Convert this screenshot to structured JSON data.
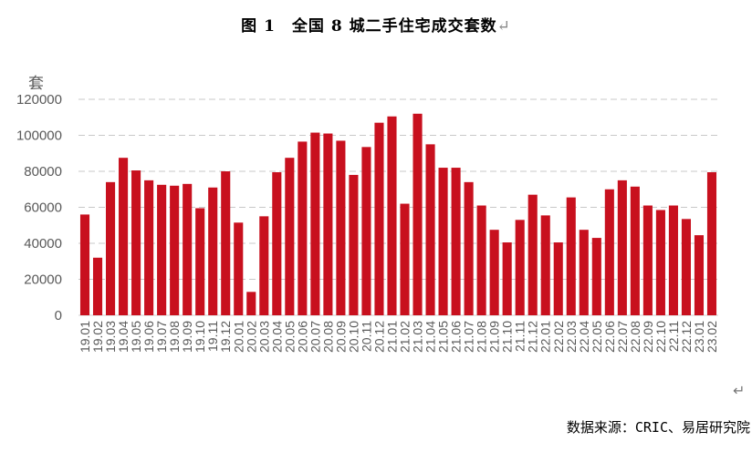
{
  "title": "图 1　全国 8 城二手住宅成交套数",
  "return_mark": "↵",
  "source": "数据来源：CRIC、易居研究院",
  "chart_data": {
    "type": "bar",
    "title": "图 1　全国 8 城二手住宅成交套数",
    "unit_label": "套",
    "xlabel": "",
    "ylabel": "套",
    "ylim": [
      0,
      120000
    ],
    "yticks": [
      "0",
      "20000",
      "40000",
      "60000",
      "80000",
      "100000",
      "120000"
    ],
    "grid": true,
    "legend": "none",
    "bar_color": "#C8101E",
    "categories": [
      "19.01",
      "19.02",
      "19.03",
      "19.04",
      "19.05",
      "19.06",
      "19.07",
      "19.08",
      "19.09",
      "19.10",
      "19.11",
      "19.12",
      "20.01",
      "20.02",
      "20.03",
      "20.04",
      "20.05",
      "20.06",
      "20.07",
      "20.08",
      "20.09",
      "20.10",
      "20.11",
      "20.12",
      "21.01",
      "21.02",
      "21.03",
      "21.04",
      "21.05",
      "21.06",
      "21.07",
      "21.08",
      "21.09",
      "21.10",
      "21.11",
      "21.12",
      "22.01",
      "22.02",
      "22.03",
      "22.04",
      "22.05",
      "22.06",
      "22.07",
      "22.08",
      "22.09",
      "22.10",
      "22.11",
      "22.12",
      "23.01",
      "23.02"
    ],
    "values": [
      56000,
      32000,
      74000,
      87500,
      80500,
      75000,
      72500,
      72000,
      73000,
      59500,
      71000,
      80000,
      51500,
      13000,
      55000,
      79500,
      87500,
      96500,
      101500,
      101000,
      97000,
      78000,
      93500,
      107000,
      110500,
      62000,
      112000,
      95000,
      82000,
      82000,
      74000,
      61000,
      47500,
      40500,
      53000,
      67000,
      55500,
      40500,
      65500,
      47500,
      43000,
      70000,
      75000,
      71500,
      61000,
      58500,
      61000,
      53500,
      44500,
      79500
    ]
  }
}
